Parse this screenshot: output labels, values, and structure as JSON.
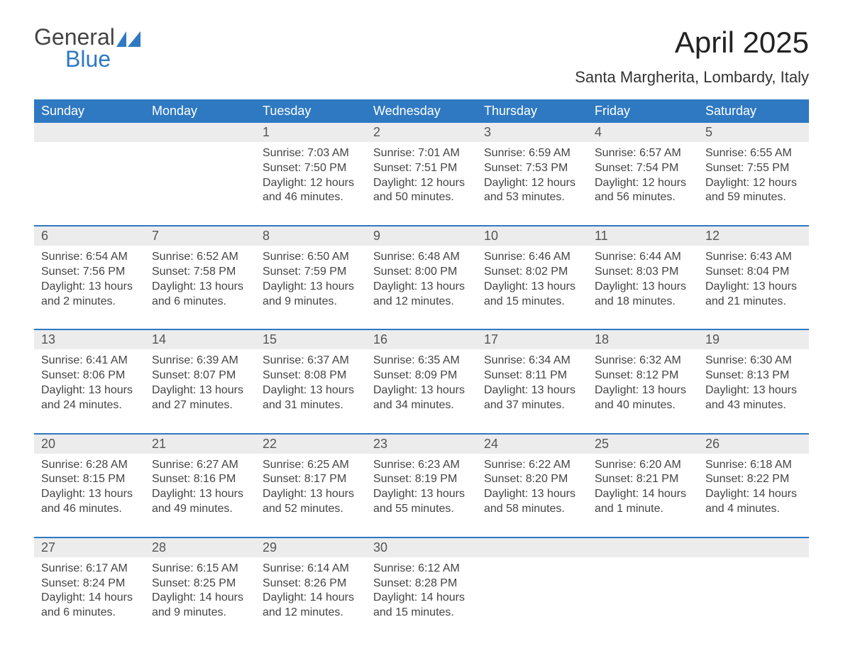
{
  "logo": {
    "word1": "General",
    "word2": "Blue"
  },
  "title": "April 2025",
  "subtitle": "Santa Margherita, Lombardy, Italy",
  "colors": {
    "header_bg": "#2f79c2",
    "header_text": "#ffffff",
    "daynum_bg": "#ececec",
    "text": "#444444",
    "logo_blue": "#2f79c2"
  },
  "fonts": {
    "title_size": 42,
    "subtitle_size": 22,
    "dow_size": 18,
    "daynum_size": 18,
    "body_size": 16
  },
  "daysOfWeek": [
    "Sunday",
    "Monday",
    "Tuesday",
    "Wednesday",
    "Thursday",
    "Friday",
    "Saturday"
  ],
  "labels": {
    "sunrise": "Sunrise",
    "sunset": "Sunset",
    "daylight": "Daylight"
  },
  "weeks": [
    [
      null,
      null,
      {
        "n": "1",
        "sr": "7:03 AM",
        "ss": "7:50 PM",
        "dl": "12 hours and 46 minutes."
      },
      {
        "n": "2",
        "sr": "7:01 AM",
        "ss": "7:51 PM",
        "dl": "12 hours and 50 minutes."
      },
      {
        "n": "3",
        "sr": "6:59 AM",
        "ss": "7:53 PM",
        "dl": "12 hours and 53 minutes."
      },
      {
        "n": "4",
        "sr": "6:57 AM",
        "ss": "7:54 PM",
        "dl": "12 hours and 56 minutes."
      },
      {
        "n": "5",
        "sr": "6:55 AM",
        "ss": "7:55 PM",
        "dl": "12 hours and 59 minutes."
      }
    ],
    [
      {
        "n": "6",
        "sr": "6:54 AM",
        "ss": "7:56 PM",
        "dl": "13 hours and 2 minutes."
      },
      {
        "n": "7",
        "sr": "6:52 AM",
        "ss": "7:58 PM",
        "dl": "13 hours and 6 minutes."
      },
      {
        "n": "8",
        "sr": "6:50 AM",
        "ss": "7:59 PM",
        "dl": "13 hours and 9 minutes."
      },
      {
        "n": "9",
        "sr": "6:48 AM",
        "ss": "8:00 PM",
        "dl": "13 hours and 12 minutes."
      },
      {
        "n": "10",
        "sr": "6:46 AM",
        "ss": "8:02 PM",
        "dl": "13 hours and 15 minutes."
      },
      {
        "n": "11",
        "sr": "6:44 AM",
        "ss": "8:03 PM",
        "dl": "13 hours and 18 minutes."
      },
      {
        "n": "12",
        "sr": "6:43 AM",
        "ss": "8:04 PM",
        "dl": "13 hours and 21 minutes."
      }
    ],
    [
      {
        "n": "13",
        "sr": "6:41 AM",
        "ss": "8:06 PM",
        "dl": "13 hours and 24 minutes."
      },
      {
        "n": "14",
        "sr": "6:39 AM",
        "ss": "8:07 PM",
        "dl": "13 hours and 27 minutes."
      },
      {
        "n": "15",
        "sr": "6:37 AM",
        "ss": "8:08 PM",
        "dl": "13 hours and 31 minutes."
      },
      {
        "n": "16",
        "sr": "6:35 AM",
        "ss": "8:09 PM",
        "dl": "13 hours and 34 minutes."
      },
      {
        "n": "17",
        "sr": "6:34 AM",
        "ss": "8:11 PM",
        "dl": "13 hours and 37 minutes."
      },
      {
        "n": "18",
        "sr": "6:32 AM",
        "ss": "8:12 PM",
        "dl": "13 hours and 40 minutes."
      },
      {
        "n": "19",
        "sr": "6:30 AM",
        "ss": "8:13 PM",
        "dl": "13 hours and 43 minutes."
      }
    ],
    [
      {
        "n": "20",
        "sr": "6:28 AM",
        "ss": "8:15 PM",
        "dl": "13 hours and 46 minutes."
      },
      {
        "n": "21",
        "sr": "6:27 AM",
        "ss": "8:16 PM",
        "dl": "13 hours and 49 minutes."
      },
      {
        "n": "22",
        "sr": "6:25 AM",
        "ss": "8:17 PM",
        "dl": "13 hours and 52 minutes."
      },
      {
        "n": "23",
        "sr": "6:23 AM",
        "ss": "8:19 PM",
        "dl": "13 hours and 55 minutes."
      },
      {
        "n": "24",
        "sr": "6:22 AM",
        "ss": "8:20 PM",
        "dl": "13 hours and 58 minutes."
      },
      {
        "n": "25",
        "sr": "6:20 AM",
        "ss": "8:21 PM",
        "dl": "14 hours and 1 minute."
      },
      {
        "n": "26",
        "sr": "6:18 AM",
        "ss": "8:22 PM",
        "dl": "14 hours and 4 minutes."
      }
    ],
    [
      {
        "n": "27",
        "sr": "6:17 AM",
        "ss": "8:24 PM",
        "dl": "14 hours and 6 minutes."
      },
      {
        "n": "28",
        "sr": "6:15 AM",
        "ss": "8:25 PM",
        "dl": "14 hours and 9 minutes."
      },
      {
        "n": "29",
        "sr": "6:14 AM",
        "ss": "8:26 PM",
        "dl": "14 hours and 12 minutes."
      },
      {
        "n": "30",
        "sr": "6:12 AM",
        "ss": "8:28 PM",
        "dl": "14 hours and 15 minutes."
      },
      null,
      null,
      null
    ]
  ]
}
